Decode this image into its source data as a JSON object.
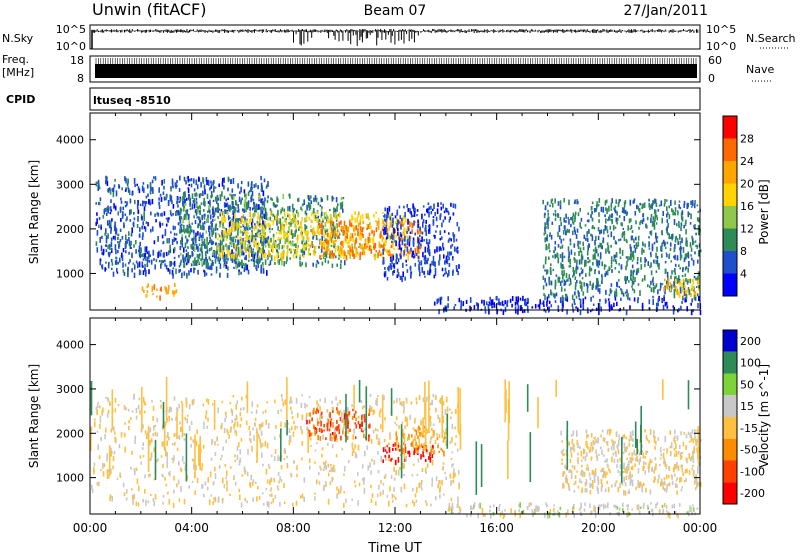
{
  "header": {
    "station": "Unwin (fitACF)",
    "beam": "Beam 07",
    "date": "27/Jan/2011"
  },
  "strip_labels": {
    "nsky": "N.Sky",
    "nsearch": "N.Search",
    "freq_line1": "Freq.",
    "freq_line2": "[MHz]",
    "nave": "Nave",
    "cpid": "CPID",
    "cpid_text": "ltuseq -8510"
  },
  "strip_ticks": {
    "noise_left": [
      "10^5",
      "10^0"
    ],
    "noise_right": [
      "10^5",
      "10^0"
    ],
    "freq_left": [
      "18",
      "8"
    ],
    "nave_right": [
      "60",
      "0"
    ]
  },
  "colors": {
    "power": [
      "#0000ff",
      "#1f4fcf",
      "#2e8b57",
      "#8fc84a",
      "#ffd400",
      "#ffa500",
      "#ff6a00",
      "#ff0000"
    ],
    "velocity": [
      "#ff0000",
      "#ff4000",
      "#ff8c00",
      "#ffc040",
      "#c8c8c8",
      "#7cd43a",
      "#2e8b57",
      "#0000cd"
    ]
  },
  "chart_data": [
    {
      "type": "heatmap",
      "title": "",
      "xlabel": "",
      "ylabel": "Slant Range [km]",
      "xlim": [
        0,
        24
      ],
      "ylim": [
        180,
        4600
      ],
      "x_ticks": [
        "00:00",
        "04:00",
        "08:00",
        "12:00",
        "16:00",
        "20:00",
        "00:00"
      ],
      "y_ticks": [
        1000,
        2000,
        3000,
        4000
      ],
      "colorbar": {
        "label": "Power [dB]",
        "ticks": [
          4,
          8,
          12,
          16,
          20,
          24,
          28
        ],
        "range": [
          0,
          32
        ]
      },
      "regions": [
        {
          "t": [
            0.2,
            7.0
          ],
          "r": [
            1000,
            3200
          ],
          "v": 6
        },
        {
          "t": [
            2.0,
            3.4
          ],
          "r": [
            500,
            800
          ],
          "v": 22
        },
        {
          "t": [
            3.5,
            10.0
          ],
          "r": [
            1200,
            2800
          ],
          "v": 10
        },
        {
          "t": [
            5.0,
            12.5
          ],
          "r": [
            1400,
            2400
          ],
          "v": 18
        },
        {
          "t": [
            9.0,
            13.0
          ],
          "r": [
            1400,
            2200
          ],
          "v": 25
        },
        {
          "t": [
            11.5,
            14.5
          ],
          "r": [
            900,
            2600
          ],
          "v": 5
        },
        {
          "t": [
            13.5,
            24.0
          ],
          "r": [
            180,
            500
          ],
          "v": 4
        },
        {
          "t": [
            17.8,
            24.0
          ],
          "r": [
            500,
            2700
          ],
          "v": 9
        },
        {
          "t": [
            22.5,
            24.0
          ],
          "r": [
            500,
            900
          ],
          "v": 20
        }
      ]
    },
    {
      "type": "heatmap",
      "title": "",
      "xlabel": "Time UT",
      "ylabel": "Slant Range [km]",
      "xlim": [
        0,
        24
      ],
      "ylim": [
        180,
        4600
      ],
      "x_ticks": [
        "00:00",
        "04:00",
        "08:00",
        "12:00",
        "16:00",
        "20:00",
        "00:00"
      ],
      "y_ticks": [
        1000,
        2000,
        3000,
        4000
      ],
      "colorbar": {
        "label": "Velocity [m s^-1]",
        "ticks": [
          200,
          100,
          50,
          15,
          -15,
          -50,
          -100,
          -200
        ],
        "range": [
          -250,
          250
        ]
      },
      "regions": [
        {
          "t": [
            0.0,
            14.5
          ],
          "r": [
            400,
            2900
          ],
          "v": 0
        },
        {
          "t": [
            8.5,
            11.0
          ],
          "r": [
            1900,
            2600
          ],
          "v": -150
        },
        {
          "t": [
            11.5,
            13.5
          ],
          "r": [
            1400,
            1800
          ],
          "v": -220
        },
        {
          "t": [
            12.0,
            14.0
          ],
          "r": [
            1600,
            2200
          ],
          "v": -60
        },
        {
          "t": [
            18.5,
            24.0
          ],
          "r": [
            700,
            2100
          ],
          "v": 0
        },
        {
          "t": [
            14.0,
            24.0
          ],
          "r": [
            180,
            450
          ],
          "v": 30
        },
        {
          "t": [
            0.0,
            24.0
          ],
          "r": [
            600,
            3300
          ],
          "v": 200
        }
      ]
    }
  ]
}
